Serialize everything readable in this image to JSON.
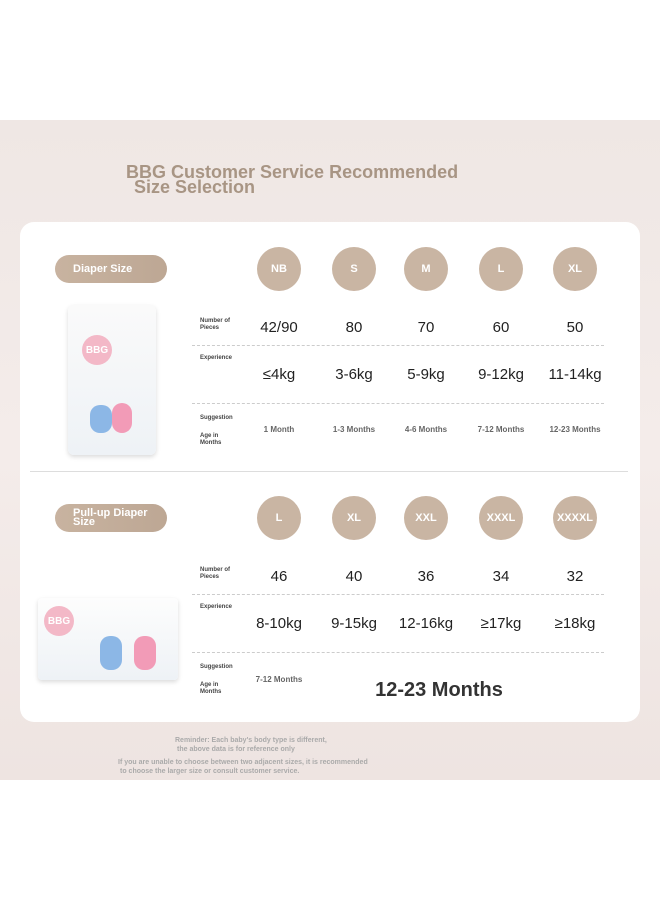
{
  "header": {
    "title": "BBG Customer Service Recommended",
    "subtitle": "Size Selection"
  },
  "sections": [
    {
      "label": "Diaper Size",
      "logo": "BBG",
      "sizes": [
        "NB",
        "S",
        "M",
        "L",
        "XL"
      ],
      "pieces_label": "Number of Pieces",
      "pieces": [
        "42/90",
        "80",
        "70",
        "60",
        "50"
      ],
      "weight_label": "Experience",
      "weights": [
        "≤4kg",
        "3-6kg",
        "5-9kg",
        "9-12kg",
        "11-14kg"
      ],
      "age_label": "Suggestion",
      "age_sublabel": "Age in Months",
      "ages": [
        "1 Month",
        "1-3 Months",
        "4-6 Months",
        "7-12 Months",
        "12-23 Months"
      ]
    },
    {
      "label": "Pull-up Diaper Size",
      "logo": "BBG",
      "sizes": [
        "L",
        "XL",
        "XXL",
        "XXXL",
        "XXXXL"
      ],
      "pieces_label": "Number of Pieces",
      "pieces": [
        "46",
        "40",
        "36",
        "34",
        "32"
      ],
      "weight_label": "Experience",
      "weights": [
        "8-10kg",
        "9-15kg",
        "12-16kg",
        "≥17kg",
        "≥18kg"
      ],
      "age_label": "Suggestion",
      "age_sublabel": "Age in Months",
      "ages": [
        "7-12 Months",
        "12-23 Months"
      ]
    }
  ],
  "reminder": [
    "Reminder: Each baby's body type is different,",
    "the above data is for reference only",
    "If you are unable to choose between two adjacent sizes, it is recommended",
    "to choose the larger size or consult customer service."
  ]
}
